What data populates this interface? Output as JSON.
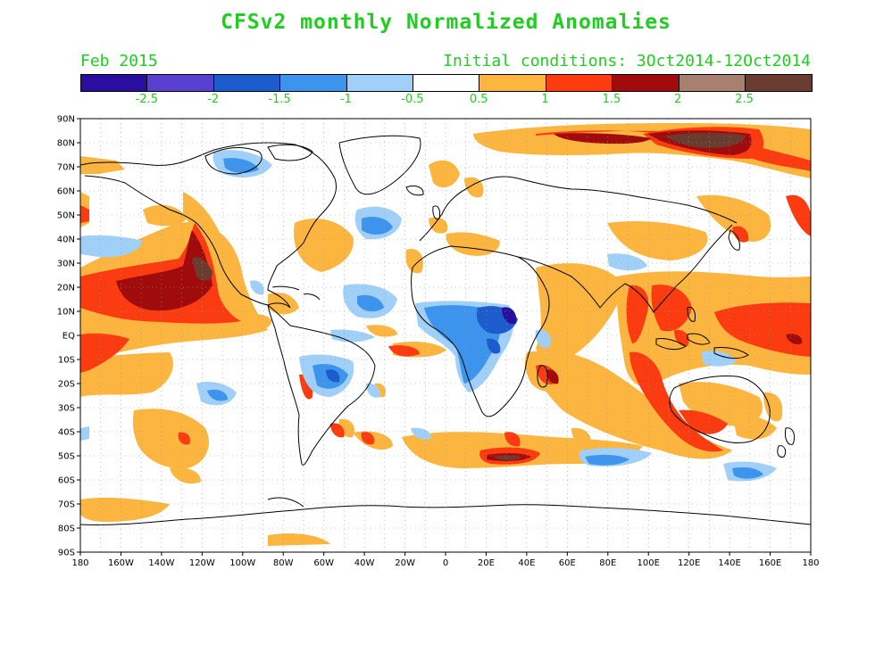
{
  "title": "CFSv2 monthly Normalized Anomalies",
  "forecast_month": "Feb 2015",
  "initial_conditions": "Initial conditions: 3Oct2014-12Oct2014",
  "colorbar": {
    "colors": [
      "#2a0ea0",
      "#5a40d0",
      "#1c5ccc",
      "#3c94ec",
      "#a0d0f8",
      "#ffffff",
      "#fcb640",
      "#fc3c10",
      "#a00c0c",
      "#a88070",
      "#6a3c30"
    ],
    "labels": [
      "-2.5",
      "-2",
      "-1.5",
      "-1",
      "-0.5",
      "0.5",
      "1",
      "1.5",
      "2",
      "2.5"
    ]
  },
  "lat_labels": [
    "90N",
    "80N",
    "70N",
    "60N",
    "50N",
    "40N",
    "30N",
    "20N",
    "10N",
    "EQ",
    "10S",
    "20S",
    "30S",
    "40S",
    "50S",
    "60S",
    "70S",
    "80S",
    "90S"
  ],
  "lon_labels": [
    "180",
    "160W",
    "140W",
    "120W",
    "100W",
    "80W",
    "60W",
    "40W",
    "20W",
    "0",
    "20E",
    "40E",
    "60E",
    "80E",
    "100E",
    "120E",
    "140E",
    "160E",
    "180"
  ],
  "legend_icon": "colorbar-icon"
}
